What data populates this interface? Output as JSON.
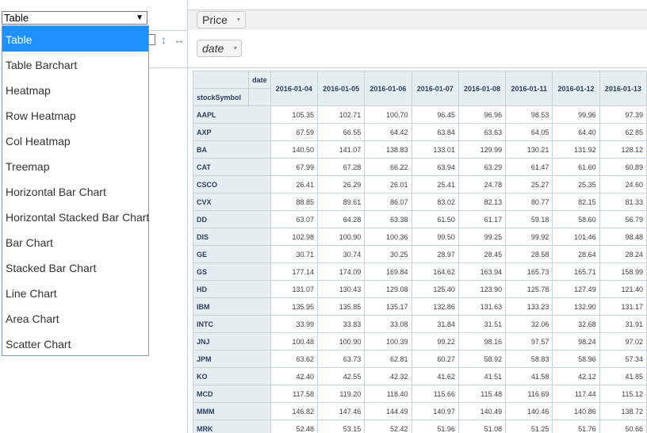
{
  "renderer": {
    "selected": "Table",
    "options": [
      "Table",
      "Table Barchart",
      "Heatmap",
      "Row Heatmap",
      "Col Heatmap",
      "Treemap",
      "Horizontal Bar Chart",
      "Horizontal Stacked Bar Chart",
      "Bar Chart",
      "Stacked Bar Chart",
      "Line Chart",
      "Area Chart",
      "Scatter Chart"
    ],
    "arrow_glyph": "▼"
  },
  "controls": {
    "sort_vertical_glyph": "↕",
    "sort_horizontal_glyph": "↔"
  },
  "fields": {
    "unused": [
      {
        "label": "Price",
        "arrow": "▾"
      }
    ],
    "cols": [
      {
        "label": "date",
        "arrow": "▾"
      }
    ]
  },
  "table": {
    "col_axis_label": "date",
    "row_axis_label": "stockSymbol",
    "columns": [
      "2016-01-04",
      "2016-01-05",
      "2016-01-06",
      "2016-01-07",
      "2016-01-08",
      "2016-01-11",
      "2016-01-12",
      "2016-01-13"
    ],
    "rows": [
      {
        "symbol": "AAPL",
        "values": [
          "105.35",
          "102.71",
          "100.70",
          "96.45",
          "96.96",
          "98.53",
          "99.96",
          "97.39"
        ]
      },
      {
        "symbol": "AXP",
        "values": [
          "67.59",
          "66.55",
          "64.42",
          "63.84",
          "63.63",
          "64.05",
          "64.40",
          "62.85"
        ]
      },
      {
        "symbol": "BA",
        "values": [
          "140.50",
          "141.07",
          "138.83",
          "133.01",
          "129.99",
          "130.21",
          "131.92",
          "128.12"
        ]
      },
      {
        "symbol": "CAT",
        "values": [
          "67.99",
          "67.28",
          "66.22",
          "63.94",
          "63.29",
          "61.47",
          "61.60",
          "60.89"
        ]
      },
      {
        "symbol": "CSCO",
        "values": [
          "26.41",
          "26.29",
          "26.01",
          "25.41",
          "24.78",
          "25.27",
          "25.35",
          "24.60"
        ]
      },
      {
        "symbol": "CVX",
        "values": [
          "88.85",
          "89.61",
          "86.07",
          "83.02",
          "82.13",
          "80.77",
          "82.15",
          "81.33"
        ]
      },
      {
        "symbol": "DD",
        "values": [
          "63.07",
          "64.28",
          "63.38",
          "61.50",
          "61.17",
          "59.18",
          "58.60",
          "56.79"
        ]
      },
      {
        "symbol": "DIS",
        "values": [
          "102.98",
          "100.90",
          "100.36",
          "99.50",
          "99.25",
          "99.92",
          "101.46",
          "98.48"
        ]
      },
      {
        "symbol": "GE",
        "values": [
          "30.71",
          "30.74",
          "30.25",
          "28.97",
          "28.45",
          "28.58",
          "28.64",
          "28.24"
        ]
      },
      {
        "symbol": "GS",
        "values": [
          "177.14",
          "174.09",
          "169.84",
          "164.62",
          "163.94",
          "165.73",
          "165.71",
          "158.99"
        ]
      },
      {
        "symbol": "HD",
        "values": [
          "131.07",
          "130.43",
          "129.08",
          "125.40",
          "123.90",
          "125.78",
          "127.49",
          "121.40"
        ]
      },
      {
        "symbol": "IBM",
        "values": [
          "135.95",
          "135.85",
          "135.17",
          "132.86",
          "131.63",
          "133.23",
          "132.90",
          "131.17"
        ]
      },
      {
        "symbol": "INTC",
        "values": [
          "33.99",
          "33.83",
          "33.08",
          "31.84",
          "31.51",
          "32.06",
          "32.68",
          "31.91"
        ]
      },
      {
        "symbol": "JNJ",
        "values": [
          "100.48",
          "100.90",
          "100.39",
          "99.22",
          "98.16",
          "97.57",
          "98.24",
          "97.02"
        ]
      },
      {
        "symbol": "JPM",
        "values": [
          "63.62",
          "63.73",
          "62.81",
          "60.27",
          "58.92",
          "58.83",
          "58.96",
          "57.34"
        ]
      },
      {
        "symbol": "KO",
        "values": [
          "42.40",
          "42.55",
          "42.32",
          "41.62",
          "41.51",
          "41.58",
          "42.12",
          "41.85"
        ]
      },
      {
        "symbol": "MCD",
        "values": [
          "117.58",
          "119.20",
          "118.40",
          "115.66",
          "115.48",
          "116.69",
          "117.44",
          "115.12"
        ]
      },
      {
        "symbol": "MMM",
        "values": [
          "146.82",
          "147.46",
          "144.49",
          "140.97",
          "140.49",
          "140.46",
          "140.86",
          "138.72"
        ]
      },
      {
        "symbol": "MRK",
        "values": [
          "52.48",
          "53.15",
          "52.42",
          "51.96",
          "51.08",
          "51.25",
          "51.76",
          "50.66"
        ]
      }
    ]
  }
}
